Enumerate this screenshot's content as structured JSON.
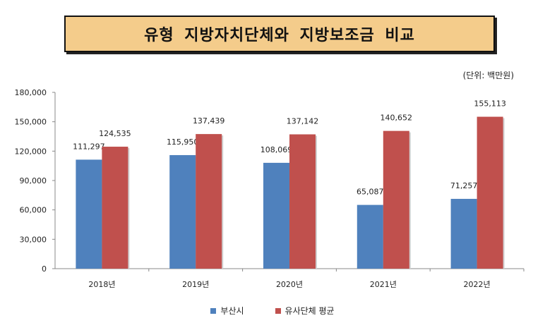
{
  "title": "유형 지방자치단체와 지방보조금 비교",
  "unit_note": "(단위: 백만원)",
  "colors": {
    "busan": "#4f81bd",
    "similar": "#c0504d",
    "title_bg": "#f4cc8b"
  },
  "chart_data": {
    "type": "bar",
    "title": "유형 지방자치단체와 지방보조금 비교",
    "xlabel": "",
    "ylabel": "",
    "categories": [
      "2018년",
      "2019년",
      "2020년",
      "2021년",
      "2022년"
    ],
    "series": [
      {
        "name": "부산시",
        "values": [
          111297,
          115950,
          108069,
          65087,
          71257
        ],
        "labels": [
          "111,297",
          "115,950",
          "108,069",
          "65,087",
          "71,257"
        ]
      },
      {
        "name": "유사단체 평균",
        "values": [
          124535,
          137439,
          137142,
          140652,
          155113
        ],
        "labels": [
          "124,535",
          "137,439",
          "137,142",
          "140,652",
          "155,113"
        ]
      }
    ],
    "ylim": [
      0,
      180000
    ],
    "yticks": [
      0,
      30000,
      60000,
      90000,
      120000,
      150000,
      180000
    ],
    "ytick_labels": [
      "0",
      "30,000",
      "60,000",
      "90,000",
      "120,000",
      "150,000",
      "180,000"
    ],
    "grid": false,
    "legend": "bottom-center"
  }
}
